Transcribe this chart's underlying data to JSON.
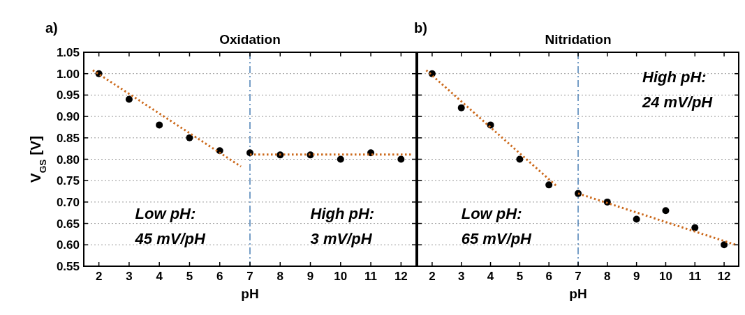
{
  "chart_data": [
    {
      "type": "scatter",
      "title": "Oxidation",
      "xlabel": "pH",
      "ylabel": "V$_{GS}$ [V]",
      "xlim": [
        1.5,
        12.5
      ],
      "ylim": [
        0.55,
        1.05
      ],
      "xticks": [
        2,
        3,
        4,
        5,
        6,
        7,
        8,
        9,
        10,
        11,
        12
      ],
      "yticks": [
        {
          "value": 0.55,
          "label": "0.55"
        },
        {
          "value": 0.6,
          "label": "0.60"
        },
        {
          "value": 0.65,
          "label": "0.65"
        },
        {
          "value": 0.7,
          "label": "0.70"
        },
        {
          "value": 0.75,
          "label": "0.75"
        },
        {
          "value": 0.8,
          "label": "0.80"
        },
        {
          "value": 0.85,
          "label": "0.85"
        },
        {
          "value": 0.9,
          "label": "0.90"
        },
        {
          "value": 0.95,
          "label": "0.95"
        },
        {
          "value": 1.0,
          "label": "1.00"
        },
        {
          "value": 1.05,
          "label": "1.05"
        }
      ],
      "grid": "y",
      "annotations": [
        "a)",
        "Low pH:\n45 mV/pH",
        "High pH:\n3 mV/pH"
      ],
      "ref_lines": [
        {
          "axis": "x",
          "value": 7,
          "color": "#4a7fb5",
          "line_style": "dashed"
        }
      ],
      "series": [
        {
          "color": "#000000",
          "marker": "circle",
          "x": [
            2,
            3,
            4,
            5,
            6,
            7,
            8,
            9,
            10,
            11,
            12
          ],
          "values": [
            1.0,
            0.94,
            0.88,
            0.85,
            0.82,
            0.815,
            0.81,
            0.81,
            0.8,
            0.815,
            0.8
          ]
        },
        {
          "type": "line",
          "color": "#cc6a1c",
          "marker": "none",
          "line_style": "dotted",
          "x": [
            1.8,
            6.7
          ],
          "values": [
            1.008,
            0.783
          ]
        },
        {
          "type": "line",
          "color": "#cc6a1c",
          "marker": "none",
          "line_style": "dotted",
          "x": [
            7,
            12.4
          ],
          "values": [
            0.811,
            0.811
          ]
        }
      ]
    },
    {
      "type": "scatter",
      "title": "Nitridation",
      "xlabel": "pH",
      "xlim": [
        1.5,
        12.5
      ],
      "ylim": [
        0.55,
        1.05
      ],
      "xticks": [
        2,
        3,
        4,
        5,
        6,
        7,
        8,
        9,
        10,
        11,
        12
      ],
      "yticks": [
        0.55,
        0.6,
        0.65,
        0.7,
        0.75,
        0.8,
        0.85,
        0.9,
        0.95,
        1.0,
        1.05
      ],
      "tick_labels": "x",
      "grid": "y",
      "annotations": [
        "b)",
        "Low pH:\n65 mV/pH",
        "High pH:\n24 mV/pH"
      ],
      "ref_lines": [
        {
          "axis": "x",
          "value": 7,
          "color": "#4a7fb5",
          "line_style": "dashed"
        }
      ],
      "series": [
        {
          "color": "#000000",
          "marker": "circle",
          "x": [
            2,
            3,
            4,
            5,
            6,
            7,
            8,
            9,
            10,
            11,
            12
          ],
          "values": [
            1.0,
            0.92,
            0.88,
            0.8,
            0.74,
            0.72,
            0.7,
            0.66,
            0.68,
            0.64,
            0.6
          ]
        },
        {
          "type": "line",
          "color": "#cc6a1c",
          "marker": "none",
          "line_style": "dotted",
          "x": [
            1.8,
            6.3
          ],
          "values": [
            1.008,
            0.735
          ]
        },
        {
          "type": "line",
          "color": "#cc6a1c",
          "marker": "none",
          "line_style": "dotted",
          "x": [
            7,
            12.4
          ],
          "values": [
            0.72,
            0.6
          ]
        }
      ]
    }
  ]
}
